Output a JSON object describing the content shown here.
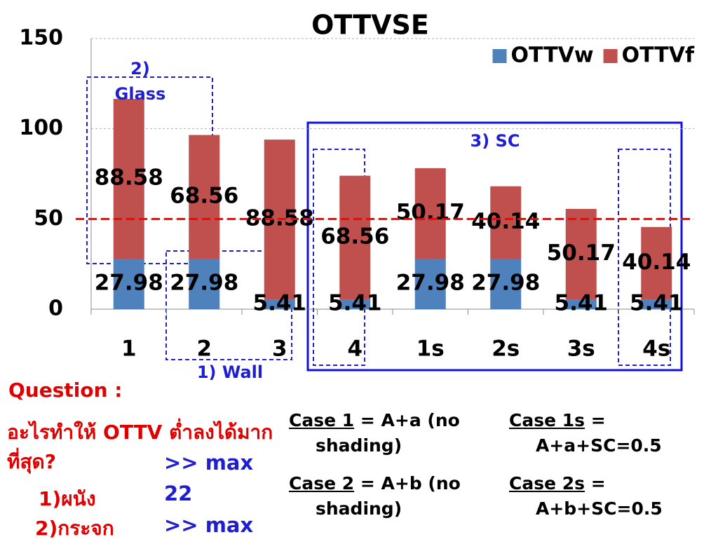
{
  "chart_data": {
    "type": "stacked_bar",
    "title": "OTTVSE",
    "categories": [
      "1",
      "2",
      "3",
      "4",
      "1s",
      "2s",
      "3s",
      "4s"
    ],
    "series": [
      {
        "name": "OTTVw",
        "color": "#4f81bd",
        "values": [
          27.98,
          27.98,
          5.41,
          5.41,
          27.98,
          27.98,
          5.41,
          5.41
        ]
      },
      {
        "name": "OTTVf",
        "color": "#c0504d",
        "values": [
          88.58,
          68.56,
          88.58,
          68.56,
          50.17,
          40.14,
          50.17,
          40.14
        ]
      }
    ],
    "ylim": [
      0,
      150
    ],
    "yticks": [
      0,
      50,
      100,
      150
    ],
    "grid": true,
    "legend": "top-right",
    "reference_line": {
      "value": 50,
      "color": "#ff0000"
    },
    "annotations": [
      "2) Glass",
      "3) SC",
      "1) Wall"
    ]
  },
  "question": {
    "title": "Question :",
    "text": "อะไรทำให้ OTTV ต่ำลงได้มากที่สุด?",
    "items": [
      "1)ผนัง",
      "2)กระจก"
    ],
    "notes": [
      ">> max 22",
      ">> max"
    ]
  },
  "cases": [
    {
      "label": "Case 1",
      "text": "= A+a (no shading)"
    },
    {
      "label": "Case 1s",
      "text": "= A+a+SC=0.5"
    },
    {
      "label": "Case 2",
      "text": "= A+b (no shading)"
    },
    {
      "label": "Case 2s",
      "text": "= A+b+SC=0.5"
    }
  ]
}
